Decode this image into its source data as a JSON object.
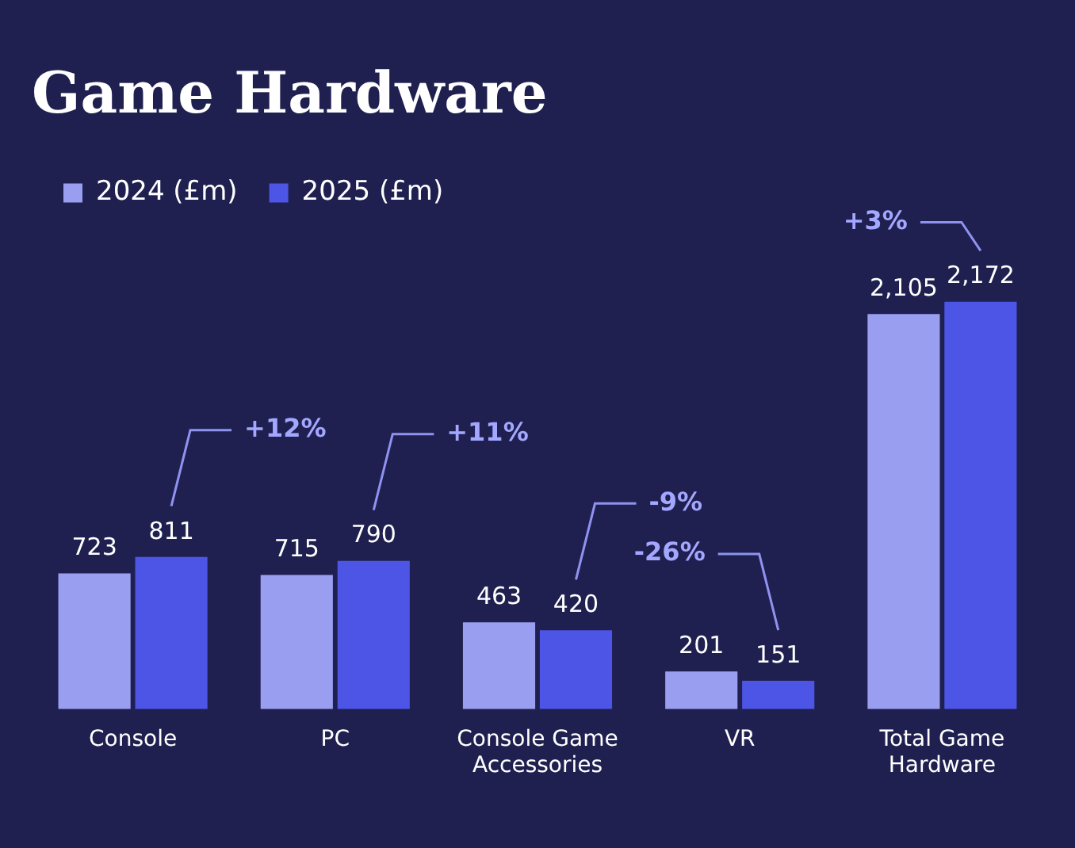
{
  "chart_data": {
    "type": "bar",
    "title": "Game Hardware",
    "categories": [
      "Console",
      "PC",
      "Console Game Accessories",
      "VR",
      "Total Game Hardware"
    ],
    "series": [
      {
        "name": "2024 (£m)",
        "color": "#9a9ef0",
        "values": [
          723,
          715,
          463,
          201,
          2105
        ],
        "value_labels": [
          "723",
          "715",
          "463",
          "201",
          "2,105"
        ]
      },
      {
        "name": "2025 (£m)",
        "color": "#4c55e6",
        "values": [
          811,
          790,
          420,
          151,
          2172
        ],
        "value_labels": [
          "811",
          "790",
          "420",
          "151",
          "2,172"
        ]
      }
    ],
    "legend": "top left",
    "grid": false,
    "annotations": [
      "+12%",
      "+11%",
      "-9%",
      "-26%",
      "+3%"
    ]
  }
}
